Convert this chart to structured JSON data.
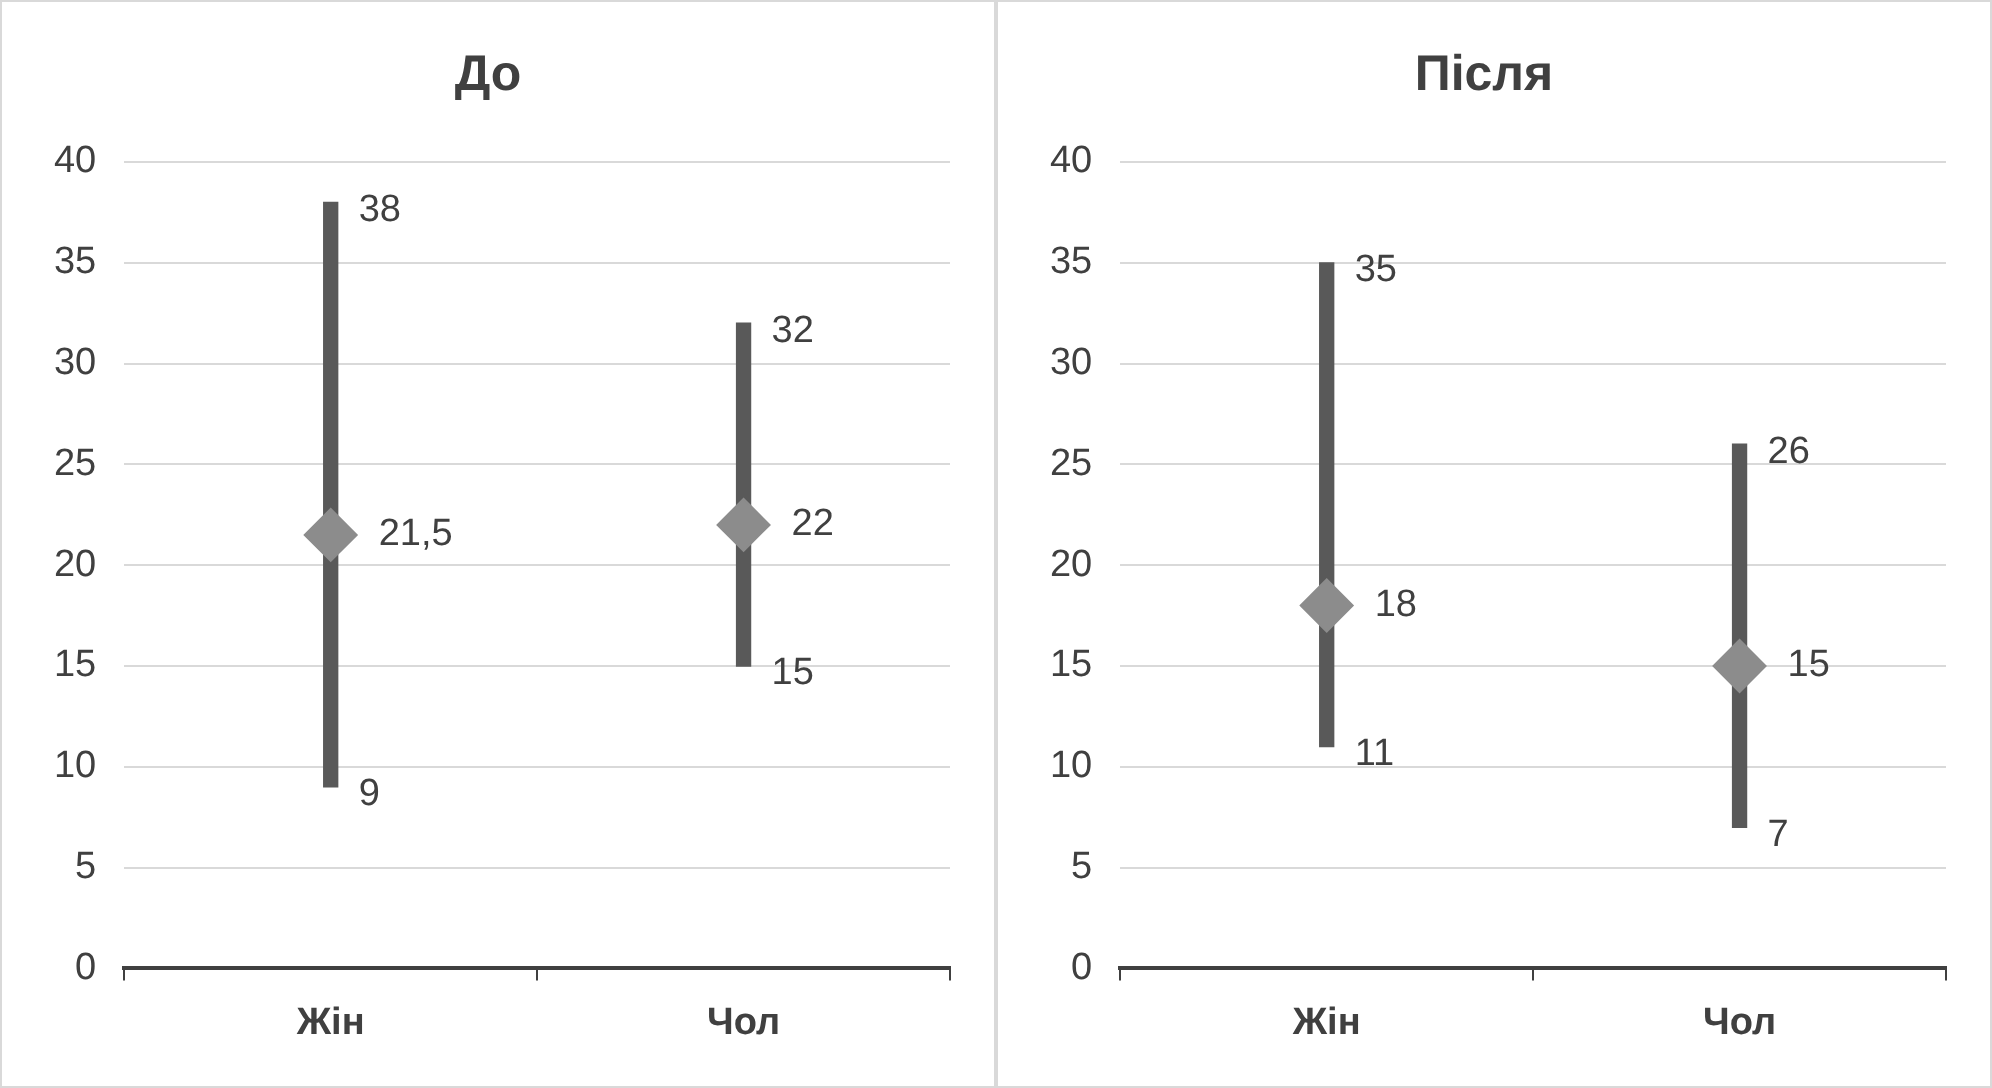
{
  "chart_data": [
    {
      "type": "bar",
      "title": "До",
      "categories": [
        "Жін",
        "Чол"
      ],
      "ylim": [
        0,
        40
      ],
      "yticks": [
        0,
        5,
        10,
        15,
        20,
        25,
        30,
        35,
        40
      ],
      "grid": "y",
      "series": [
        {
          "color": "#595959",
          "values": [
            29,
            17
          ],
          "base": [
            9,
            15
          ]
        },
        {
          "type": "scatter",
          "color": "#8c8c8c",
          "marker": "diamond",
          "values": [
            21.5,
            22
          ],
          "value_labels": [
            "21,5",
            "22"
          ]
        }
      ],
      "annotations": [
        {
          "text": "38",
          "x": "Жін",
          "y": 38
        },
        {
          "text": "9",
          "x": "Жін",
          "y": 9
        },
        {
          "text": "32",
          "x": "Чол",
          "y": 32
        },
        {
          "text": "15",
          "x": "Чол",
          "y": 15
        }
      ]
    },
    {
      "type": "bar",
      "title": "Після",
      "categories": [
        "Жін",
        "Чол"
      ],
      "ylim": [
        0,
        40
      ],
      "yticks": [
        0,
        5,
        10,
        15,
        20,
        25,
        30,
        35,
        40
      ],
      "grid": "y",
      "series": [
        {
          "color": "#595959",
          "values": [
            24,
            19
          ],
          "base": [
            11,
            7
          ]
        },
        {
          "type": "scatter",
          "color": "#8c8c8c",
          "marker": "diamond",
          "values": [
            18,
            15
          ],
          "value_labels": [
            "18",
            "15"
          ]
        }
      ],
      "annotations": [
        {
          "text": "35",
          "x": "Жін",
          "y": 35
        },
        {
          "text": "11",
          "x": "Жін",
          "y": 11
        },
        {
          "text": "26",
          "x": "Чол",
          "y": 26
        },
        {
          "text": "7",
          "x": "Чол",
          "y": 7
        }
      ]
    }
  ]
}
